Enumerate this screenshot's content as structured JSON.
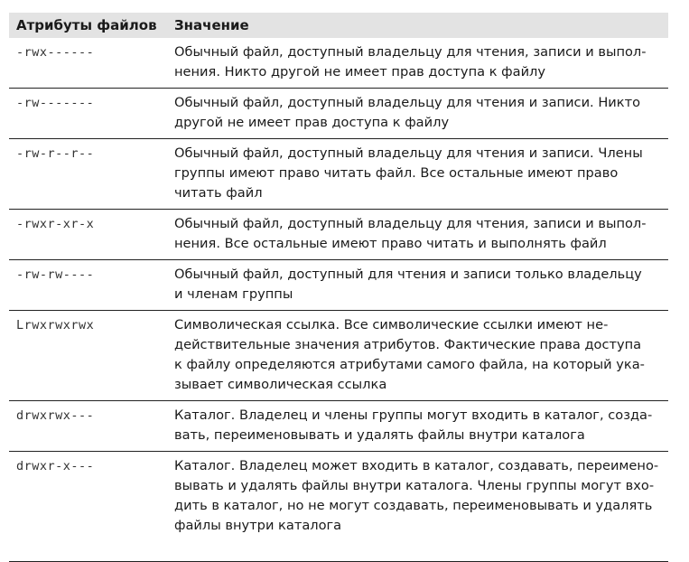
{
  "header": {
    "col1": "Атрибуты файлов",
    "col2": "Значение"
  },
  "rows": [
    {
      "attr": "-rwx------",
      "lines": [
        "Обычный файл, доступный владельцу для чтения, записи и выпол-",
        "нения. Никто другой не имеет прав доступа к файлу"
      ]
    },
    {
      "attr": "-rw-------",
      "lines": [
        "Обычный файл, доступный владельцу для чтения и записи. Никто",
        "другой не имеет прав доступа к файлу"
      ]
    },
    {
      "attr": "-rw-r--r--",
      "lines": [
        "Обычный файл, доступный владельцу для чтения и записи. Члены",
        "группы имеют право читать файл. Все остальные имеют право",
        "читать файл"
      ]
    },
    {
      "attr": "-rwxr-xr-x",
      "lines": [
        "Обычный файл, доступный владельцу для чтения, записи и выпол-",
        "нения. Все остальные имеют право читать и выполнять файл"
      ]
    },
    {
      "attr": "-rw-rw----",
      "lines": [
        "Обычный файл, доступный для чтения и записи только владельцу",
        "и членам группы"
      ]
    },
    {
      "attr": "Lrwxrwxrwx",
      "lines": [
        "Символическая ссылка. Все символические ссылки имеют не-",
        "действительные значения атрибутов. Фактические права доступа",
        "к файлу определяются атрибутами самого файла, на который ука-",
        "зывает символическая ссылка"
      ]
    },
    {
      "attr": "drwxrwx---",
      "lines": [
        "Каталог. Владелец и члены группы могут входить в каталог, созда-",
        "вать, переименовывать и удалять файлы внутри каталога"
      ]
    },
    {
      "attr": "drwxr-x---",
      "lines": [
        "Каталог. Владелец может входить в каталог, создавать, переимено-",
        "вывать и удалять файлы внутри каталога. Члены группы могут вхо-",
        "дить в каталог, но не могут создавать, переименовывать и удалять",
        "файлы внутри каталога"
      ]
    }
  ]
}
